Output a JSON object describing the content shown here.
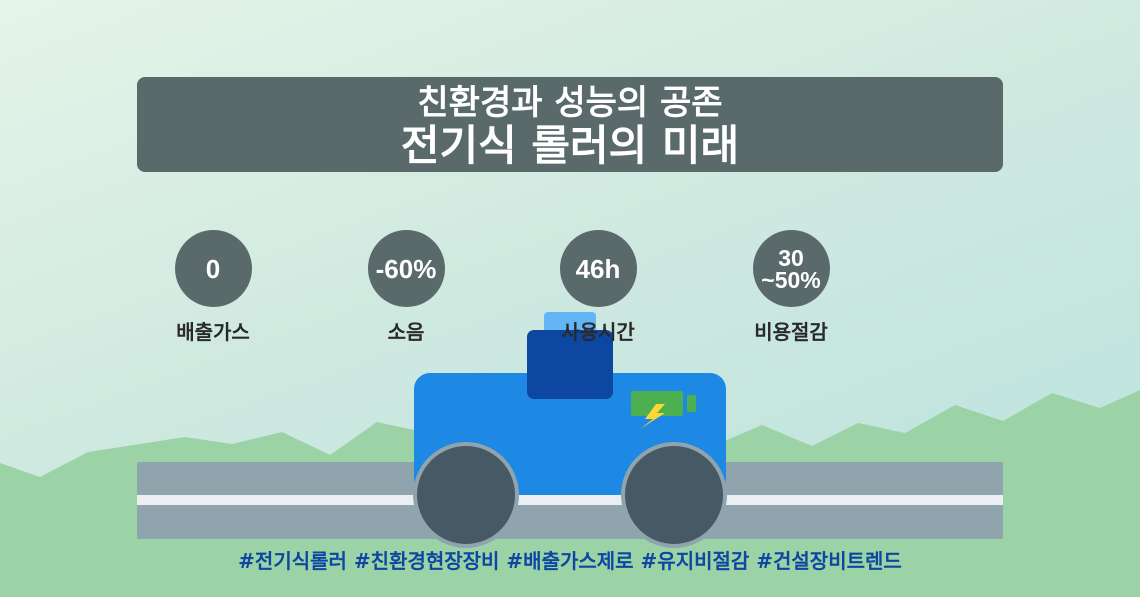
{
  "title": {
    "line1": "친환경과 성능의 공존",
    "line2": "전기식 롤러의 미래"
  },
  "stats": [
    {
      "value": "0",
      "label": "배출가스"
    },
    {
      "value": "-60%",
      "label": "소음"
    },
    {
      "value": "46h",
      "label": "사용시간"
    },
    {
      "value_line1": "30",
      "value_line2": "~50%",
      "label": "비용절감"
    }
  ],
  "hashtags": "#전기식롤러 #친환경현장장비 #배출가스제로 #유지비절감 #건설장비트렌드",
  "colors": {
    "panel": "#5a6a6a",
    "roller_body": "#1e88e5",
    "cabin": "#0d47a1",
    "battery": "#4caf50",
    "bolt": "#fdd835",
    "road": "#90a4ae",
    "hill": "#9bd3a6",
    "hashtag": "#0d47a1"
  },
  "icons": [
    "battery-icon",
    "lightning-bolt-icon"
  ]
}
